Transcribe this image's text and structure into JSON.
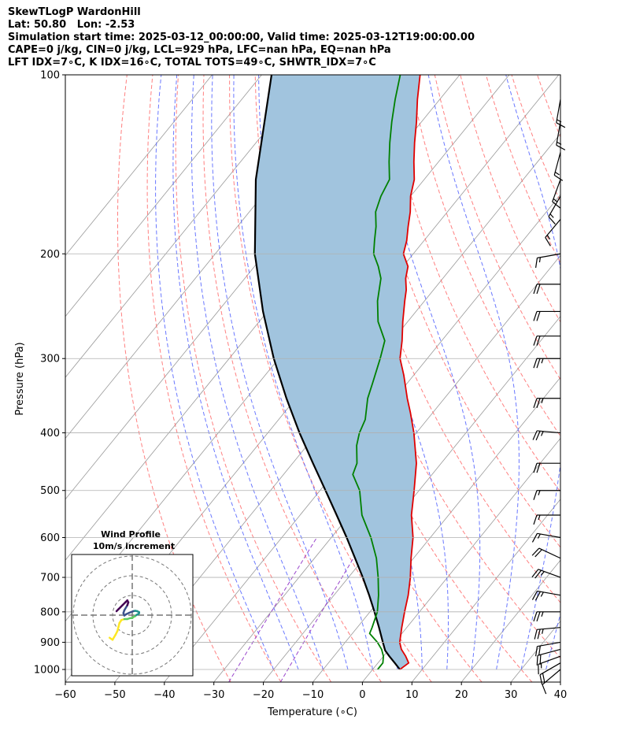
{
  "header": {
    "line1": "SkewTLogP WardonHill",
    "line2": "Lat: 50.80   Lon: -2.53",
    "line3": "Simulation start time: 2025-03-12_00:00:00, Valid time: 2025-03-12T19:00:00.00",
    "line4": "CAPE=0 j/kg, CIN=0 j/kg, LCL=929 hPa, LFC=nan hPa, EQ=nan hPa",
    "line5": "LFT IDX=7∘C, K IDX=16∘C, TOTAL TOTS=49∘C, SHWTR_IDX=7∘C"
  },
  "chart_data": {
    "type": "line",
    "chart_kind": "skew-t log-p",
    "xlabel": "Temperature (∘C)",
    "ylabel": "Pressure (hPa)",
    "xlim": [
      -60,
      40
    ],
    "ylim": [
      1050,
      100
    ],
    "y_scale": "log",
    "x_ticks": [
      -60,
      -50,
      -40,
      -30,
      -20,
      -10,
      0,
      10,
      20,
      30,
      40
    ],
    "x_tick_labels": [
      "−60",
      "−50",
      "−40",
      "−30",
      "−20",
      "−10",
      "0",
      "10",
      "20",
      "30",
      "40"
    ],
    "y_ticks": [
      1000,
      900,
      800,
      700,
      600,
      500,
      400,
      300,
      200,
      100
    ],
    "y_tick_labels": [
      "1000",
      "900",
      "800",
      "700",
      "600",
      "500",
      "400",
      "300",
      "200",
      "100"
    ],
    "grid": true,
    "colors": {
      "temperature": "#e00000",
      "dewpoint": "#008000",
      "parcel": "#000000",
      "shading": "#a1c4de",
      "dry_adiabats": "#ff6060",
      "moist_adiabats": "#5060ff",
      "mixing_ratio": "#9944cc",
      "isotherms": "#999999"
    },
    "series": [
      {
        "role": "temperature",
        "points": [
          [
            1000,
            5.5
          ],
          [
            975,
            6.2
          ],
          [
            950,
            4.5
          ],
          [
            925,
            2.5
          ],
          [
            900,
            1.0
          ],
          [
            850,
            -1.0
          ],
          [
            800,
            -3.0
          ],
          [
            750,
            -5.0
          ],
          [
            700,
            -7.5
          ],
          [
            650,
            -10.5
          ],
          [
            600,
            -13.5
          ],
          [
            550,
            -17.5
          ],
          [
            500,
            -21.0
          ],
          [
            450,
            -25.0
          ],
          [
            400,
            -30.5
          ],
          [
            370,
            -34.5
          ],
          [
            350,
            -37.5
          ],
          [
            320,
            -42.0
          ],
          [
            300,
            -45.5
          ],
          [
            280,
            -48.0
          ],
          [
            260,
            -51.0
          ],
          [
            240,
            -54.0
          ],
          [
            230,
            -55.5
          ],
          [
            220,
            -57.5
          ],
          [
            210,
            -59.0
          ],
          [
            200,
            -62.0
          ],
          [
            190,
            -63.5
          ],
          [
            180,
            -65.5
          ],
          [
            170,
            -67.5
          ],
          [
            160,
            -70.0
          ],
          [
            150,
            -72.0
          ],
          [
            140,
            -75.0
          ],
          [
            130,
            -78.0
          ],
          [
            120,
            -81.0
          ],
          [
            110,
            -84.5
          ],
          [
            100,
            -88.0
          ]
        ]
      },
      {
        "role": "dewpoint",
        "points": [
          [
            1000,
            1.0
          ],
          [
            975,
            1.0
          ],
          [
            950,
            0.0
          ],
          [
            925,
            -1.5
          ],
          [
            900,
            -3.5
          ],
          [
            870,
            -6.5
          ],
          [
            850,
            -7.0
          ],
          [
            800,
            -8.5
          ],
          [
            750,
            -11.0
          ],
          [
            700,
            -14.0
          ],
          [
            650,
            -17.5
          ],
          [
            600,
            -22.0
          ],
          [
            550,
            -27.5
          ],
          [
            500,
            -32.0
          ],
          [
            470,
            -36.0
          ],
          [
            450,
            -37.0
          ],
          [
            420,
            -40.0
          ],
          [
            400,
            -41.5
          ],
          [
            380,
            -42.5
          ],
          [
            350,
            -45.5
          ],
          [
            330,
            -47.0
          ],
          [
            300,
            -49.5
          ],
          [
            280,
            -51.5
          ],
          [
            260,
            -56.0
          ],
          [
            240,
            -59.5
          ],
          [
            220,
            -62.5
          ],
          [
            210,
            -65.0
          ],
          [
            200,
            -68.0
          ],
          [
            190,
            -70.0
          ],
          [
            180,
            -72.0
          ],
          [
            170,
            -74.5
          ],
          [
            160,
            -76.0
          ],
          [
            150,
            -77.0
          ],
          [
            140,
            -80.0
          ],
          [
            130,
            -83.0
          ],
          [
            120,
            -86.0
          ],
          [
            110,
            -89.0
          ],
          [
            100,
            -92.0
          ]
        ]
      },
      {
        "role": "parcel",
        "points": [
          [
            1000,
            5.5
          ],
          [
            975,
            3.4
          ],
          [
            950,
            1.2
          ],
          [
            929,
            -0.6
          ],
          [
            900,
            -2.4
          ],
          [
            850,
            -5.6
          ],
          [
            800,
            -9.1
          ],
          [
            750,
            -12.9
          ],
          [
            700,
            -17.1
          ],
          [
            650,
            -21.8
          ],
          [
            600,
            -26.9
          ],
          [
            550,
            -32.6
          ],
          [
            500,
            -38.9
          ],
          [
            450,
            -45.9
          ],
          [
            400,
            -53.6
          ],
          [
            350,
            -61.9
          ],
          [
            300,
            -71.0
          ],
          [
            250,
            -80.9
          ],
          [
            200,
            -92.0
          ],
          [
            150,
            -104.0
          ],
          [
            100,
            -118.0
          ]
        ]
      }
    ],
    "wind_barbs": [
      {
        "p": 1000,
        "spd": 10,
        "dir": 230
      },
      {
        "p": 975,
        "spd": 20,
        "dir": 240
      },
      {
        "p": 950,
        "spd": 15,
        "dir": 250
      },
      {
        "p": 925,
        "spd": 20,
        "dir": 255
      },
      {
        "p": 900,
        "spd": 20,
        "dir": 260
      },
      {
        "p": 850,
        "spd": 25,
        "dir": 265
      },
      {
        "p": 800,
        "spd": 25,
        "dir": 270
      },
      {
        "p": 750,
        "spd": 25,
        "dir": 280
      },
      {
        "p": 700,
        "spd": 25,
        "dir": 290
      },
      {
        "p": 650,
        "spd": 20,
        "dir": 295
      },
      {
        "p": 600,
        "spd": 15,
        "dir": 280
      },
      {
        "p": 550,
        "spd": 15,
        "dir": 270
      },
      {
        "p": 500,
        "spd": 15,
        "dir": 270
      },
      {
        "p": 450,
        "spd": 20,
        "dir": 270
      },
      {
        "p": 400,
        "spd": 25,
        "dir": 275
      },
      {
        "p": 350,
        "spd": 25,
        "dir": 270
      },
      {
        "p": 300,
        "spd": 25,
        "dir": 270
      },
      {
        "p": 275,
        "spd": 20,
        "dir": 270
      },
      {
        "p": 250,
        "spd": 20,
        "dir": 270
      },
      {
        "p": 225,
        "spd": 20,
        "dir": 270
      },
      {
        "p": 200,
        "spd": 15,
        "dir": 260
      },
      {
        "p": 175,
        "spd": 15,
        "dir": 220
      },
      {
        "p": 160,
        "spd": 15,
        "dir": 210
      },
      {
        "p": 150,
        "spd": 15,
        "dir": 200
      },
      {
        "p": 135,
        "spd": 15,
        "dir": 195
      },
      {
        "p": 120,
        "spd": 15,
        "dir": 190
      },
      {
        "p": 110,
        "spd": 15,
        "dir": 190
      }
    ],
    "inset": {
      "title": "Wind Profile",
      "subtitle": "10m/s increment",
      "hodograph": [
        [
          2.5,
          -11.5
        ],
        [
          4.0,
          -12.5
        ],
        [
          5.5,
          -10.0
        ],
        [
          6.5,
          -8.0
        ],
        [
          7.0,
          -6.0
        ],
        [
          7.5,
          -4.0
        ],
        [
          8.5,
          -2.5
        ],
        [
          10.0,
          -2.0
        ],
        [
          11.5,
          -2.0
        ],
        [
          13.0,
          -1.5
        ],
        [
          14.0,
          -1.5
        ],
        [
          14.5,
          -1.0
        ],
        [
          15.5,
          -0.5
        ],
        [
          16.0,
          0.0
        ],
        [
          17.0,
          0.5
        ],
        [
          17.5,
          1.0
        ],
        [
          17.5,
          1.5
        ],
        [
          16.5,
          2.0
        ],
        [
          15.5,
          2.2
        ],
        [
          14.5,
          2.0
        ],
        [
          12.5,
          1.2
        ],
        [
          11.0,
          0.5
        ],
        [
          10.0,
          -0.2
        ],
        [
          9.5,
          1.0
        ],
        [
          10.0,
          2.5
        ],
        [
          11.5,
          5.0
        ],
        [
          12.0,
          6.5
        ],
        [
          11.5,
          7.5
        ],
        [
          10.5,
          6.5
        ],
        [
          9.0,
          5.0
        ],
        [
          8.0,
          4.0
        ],
        [
          7.0,
          3.0
        ],
        [
          6.0,
          2.0
        ]
      ]
    }
  }
}
